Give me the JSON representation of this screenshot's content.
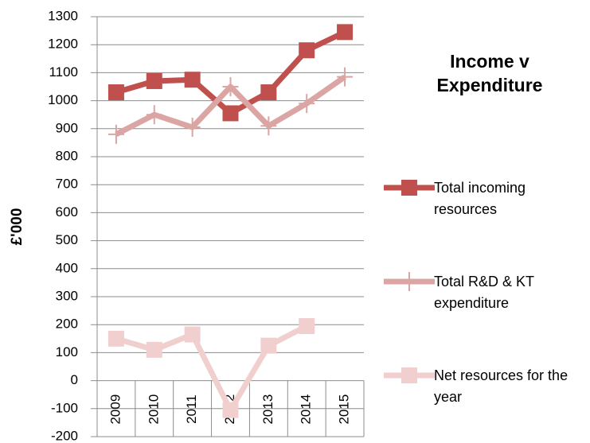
{
  "chart_data": {
    "type": "line",
    "title": "Income v Expenditure",
    "y_label": "£'000",
    "categories": [
      "2009",
      "2010",
      "2011",
      "2012",
      "2013",
      "2014",
      "2015"
    ],
    "series": [
      {
        "name": "Total incoming resources",
        "color": "#c0504d",
        "marker": "square",
        "values": [
          1030,
          1070,
          1075,
          955,
          1030,
          1180,
          1245
        ]
      },
      {
        "name": "Total R&D & KT expenditure",
        "color": "#dba5a4",
        "marker": "plus",
        "values": [
          880,
          950,
          905,
          1050,
          910,
          990,
          1085
        ]
      },
      {
        "name": "Net  resources for the year",
        "color": "#f0cfce",
        "marker": "square",
        "values": [
          150,
          110,
          165,
          -105,
          125,
          195,
          null
        ]
      }
    ],
    "ylim": [
      -200,
      1300
    ],
    "yticks": [
      -200,
      -100,
      0,
      100,
      200,
      300,
      400,
      500,
      600,
      700,
      800,
      900,
      1000,
      1100,
      1200,
      1300
    ],
    "grid": true,
    "legend": "right"
  }
}
